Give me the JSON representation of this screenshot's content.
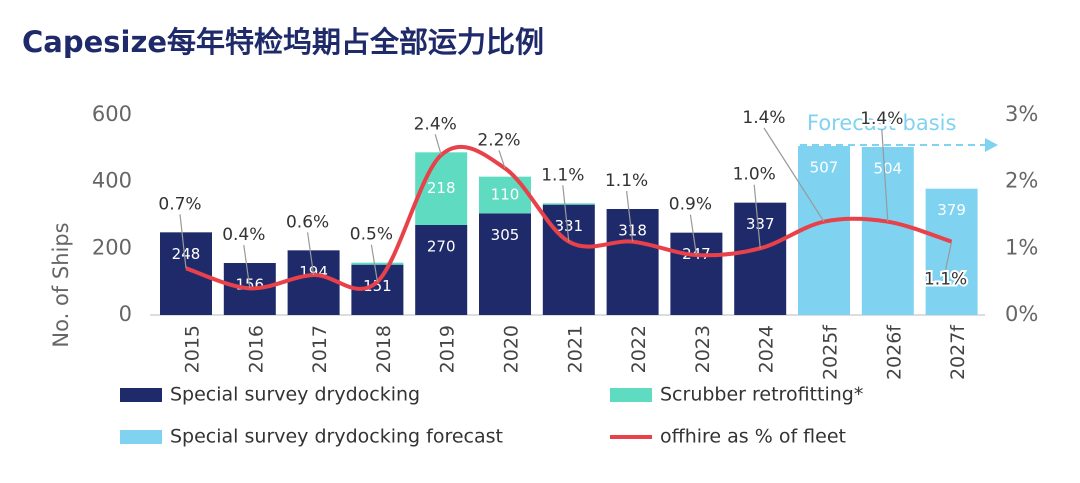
{
  "chart_data": {
    "type": "bar",
    "title": "Capesize每年特检坞期占全部运力比例",
    "categories": [
      "2015",
      "2016",
      "2017",
      "2018",
      "2019",
      "2020",
      "2021",
      "2022",
      "2023",
      "2024",
      "2025f",
      "2026f",
      "2027f"
    ],
    "series": [
      {
        "name": "Special survey drydocking",
        "color": "#1f2a6b",
        "values": [
          248,
          156,
          194,
          151,
          270,
          305,
          331,
          318,
          247,
          337,
          null,
          null,
          null
        ]
      },
      {
        "name": "Scrubber retrofitting*",
        "color": "#5edbc0",
        "values": [
          null,
          null,
          null,
          6,
          218,
          110,
          4,
          null,
          null,
          null,
          null,
          null,
          null
        ]
      },
      {
        "name": "Special survey drydocking forecast",
        "color": "#7fd3f0",
        "values": [
          null,
          null,
          null,
          null,
          null,
          null,
          null,
          null,
          null,
          null,
          507,
          504,
          379
        ]
      },
      {
        "name": "offhire as % of fleet",
        "color": "#e8414a",
        "type": "line",
        "axis": "y2",
        "values": [
          0.7,
          0.4,
          0.6,
          0.5,
          2.4,
          2.2,
          1.1,
          1.1,
          0.9,
          1.0,
          1.4,
          1.4,
          1.1
        ],
        "value_labels": [
          "0.7%",
          "0.4%",
          "0.6%",
          "0.5%",
          "2.4%",
          "2.2%",
          "1.1%",
          "1.1%",
          "0.9%",
          "1.0%",
          "1.4%",
          "1.4%",
          "1.1%"
        ]
      }
    ],
    "ylabel": "No. of Ships",
    "ylim": [
      0,
      600
    ],
    "yticks": [
      0,
      200,
      400,
      600
    ],
    "y2lim": [
      0,
      3
    ],
    "y2ticks": [
      {
        "value": 0,
        "label": "0%"
      },
      {
        "value": 1,
        "label": "1%"
      },
      {
        "value": 2,
        "label": "2%"
      },
      {
        "value": 3,
        "label": "3%"
      }
    ],
    "annotation": "Forecast basis"
  }
}
